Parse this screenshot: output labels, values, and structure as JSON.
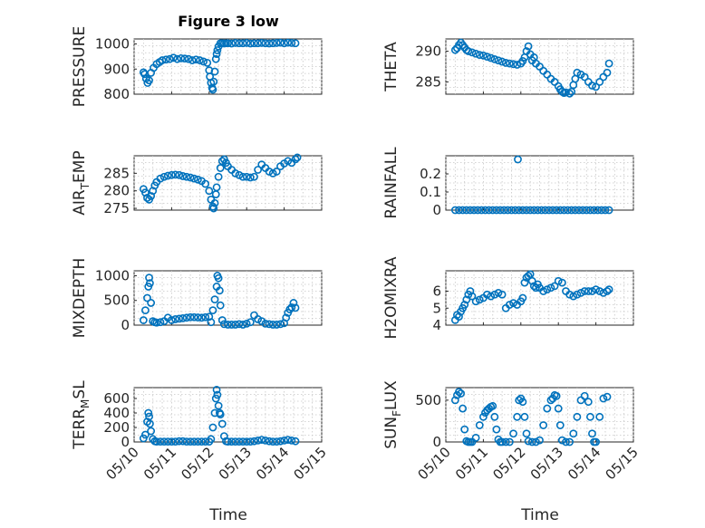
{
  "figure": {
    "title": "Figure 3 low",
    "xlabel": "Time",
    "x_tick_labels": [
      "05/10",
      "05/11",
      "05/12",
      "05/13",
      "05/14",
      "05/15"
    ],
    "marker_color": "#0072BD"
  },
  "chart_data": [
    {
      "type": "scatter",
      "ylabel": "PRESSURE",
      "ylabel_sub": "",
      "xlim": [
        0,
        5
      ],
      "ylim": [
        800,
        1020
      ],
      "yticks": [
        800,
        900,
        1000
      ],
      "show_xticklabels": false,
      "x": [
        0.25,
        0.28,
        0.32,
        0.36,
        0.4,
        0.45,
        0.52,
        0.6,
        0.68,
        0.75,
        0.85,
        0.95,
        1.05,
        1.15,
        1.25,
        1.35,
        1.45,
        1.55,
        1.65,
        1.75,
        1.85,
        1.95,
        2.0,
        2.02,
        2.05,
        2.08,
        2.1,
        2.12,
        2.15,
        2.18,
        2.2,
        2.22,
        2.25,
        2.3,
        2.35,
        2.4,
        2.45,
        2.5,
        2.6,
        2.7,
        2.8,
        2.9,
        3.0,
        3.1,
        3.2,
        3.3,
        3.4,
        3.5,
        3.6,
        3.7,
        3.8,
        3.9,
        4.0,
        4.1,
        4.2,
        4.3
      ],
      "y": [
        887,
        880,
        862,
        845,
        855,
        885,
        905,
        920,
        928,
        935,
        938,
        940,
        945,
        940,
        943,
        942,
        940,
        935,
        938,
        935,
        930,
        925,
        895,
        870,
        845,
        825,
        818,
        850,
        890,
        940,
        960,
        975,
        990,
        1003,
        1003,
        1002,
        1003,
        1003,
        1002,
        1004,
        1003,
        1003,
        1004,
        1002,
        1003,
        1003,
        1004,
        1003,
        1002,
        1003,
        1004,
        1005,
        1003,
        1005,
        1004,
        1003
      ]
    },
    {
      "type": "scatter",
      "ylabel": "THETA",
      "ylabel_sub": "",
      "xlim": [
        0,
        5
      ],
      "ylim": [
        283,
        292
      ],
      "yticks": [
        285,
        290
      ],
      "show_xticklabels": false,
      "x": [
        0.25,
        0.3,
        0.35,
        0.4,
        0.45,
        0.5,
        0.55,
        0.6,
        0.7,
        0.8,
        0.9,
        1.0,
        1.1,
        1.2,
        1.3,
        1.4,
        1.5,
        1.6,
        1.7,
        1.8,
        1.9,
        2.0,
        2.05,
        2.1,
        2.15,
        2.2,
        2.25,
        2.3,
        2.35,
        2.4,
        2.5,
        2.6,
        2.7,
        2.8,
        2.9,
        3.0,
        3.05,
        3.1,
        3.15,
        3.2,
        3.3,
        3.35,
        3.4,
        3.45,
        3.5,
        3.6,
        3.7,
        3.8,
        3.9,
        4.0,
        4.1,
        4.2,
        4.3,
        4.35
      ],
      "y": [
        290.2,
        290.5,
        291.0,
        291.4,
        291.0,
        290.6,
        290.2,
        290.0,
        289.8,
        289.6,
        289.4,
        289.3,
        289.1,
        288.9,
        288.7,
        288.5,
        288.3,
        288.1,
        288.0,
        287.9,
        287.8,
        288.0,
        288.4,
        289.0,
        290.0,
        290.8,
        289.5,
        288.5,
        289.0,
        288.0,
        287.5,
        286.8,
        286.2,
        285.5,
        285.0,
        284.3,
        283.8,
        283.4,
        283.2,
        283.3,
        283.1,
        283.4,
        284.5,
        285.5,
        286.5,
        286.2,
        285.8,
        285.0,
        284.4,
        284.2,
        285.0,
        285.8,
        286.5,
        288.0
      ]
    },
    {
      "type": "scatter",
      "ylabel": "AIR",
      "ylabel_sub": "T",
      "ylabel_rest": "EMP",
      "xlim": [
        0,
        5
      ],
      "ylim": [
        274.5,
        290
      ],
      "yticks": [
        275,
        280,
        285
      ],
      "show_xticklabels": false,
      "x": [
        0.25,
        0.3,
        0.35,
        0.4,
        0.45,
        0.5,
        0.55,
        0.6,
        0.7,
        0.8,
        0.9,
        1.0,
        1.1,
        1.2,
        1.3,
        1.4,
        1.5,
        1.6,
        1.7,
        1.8,
        1.9,
        2.0,
        2.05,
        2.1,
        2.12,
        2.15,
        2.18,
        2.2,
        2.25,
        2.3,
        2.35,
        2.4,
        2.45,
        2.5,
        2.6,
        2.7,
        2.8,
        2.9,
        3.0,
        3.1,
        3.2,
        3.3,
        3.4,
        3.5,
        3.6,
        3.7,
        3.8,
        3.9,
        4.0,
        4.1,
        4.2,
        4.3,
        4.35
      ],
      "y": [
        280.5,
        279.5,
        278.0,
        277.5,
        278.5,
        280.0,
        281.5,
        282.5,
        283.5,
        284.0,
        284.3,
        284.5,
        284.6,
        284.5,
        284.2,
        284.0,
        283.8,
        283.5,
        283.2,
        282.8,
        282.0,
        280.0,
        277.5,
        275.5,
        275.0,
        276.5,
        279.0,
        281.0,
        284.0,
        286.5,
        288.5,
        289.0,
        288.0,
        287.0,
        286.0,
        285.0,
        284.5,
        284.0,
        284.0,
        283.8,
        284.0,
        286.0,
        287.5,
        286.5,
        285.5,
        285.0,
        285.5,
        287.0,
        287.8,
        288.5,
        288.0,
        289.0,
        289.5
      ]
    },
    {
      "type": "scatter",
      "ylabel": "RAINFALL",
      "ylabel_sub": "",
      "xlim": [
        0,
        5
      ],
      "ylim": [
        0,
        0.3
      ],
      "yticks": [
        0,
        0.1,
        0.2
      ],
      "ytick_labels": [
        "0",
        "0.1",
        "0.2"
      ],
      "show_xticklabels": false,
      "x": [
        0.25,
        0.35,
        0.45,
        0.55,
        0.65,
        0.75,
        0.85,
        0.95,
        1.05,
        1.15,
        1.25,
        1.35,
        1.45,
        1.55,
        1.65,
        1.75,
        1.85,
        1.95,
        2.05,
        2.15,
        2.25,
        2.35,
        2.45,
        2.55,
        2.65,
        2.75,
        2.85,
        2.95,
        3.05,
        3.15,
        3.25,
        3.35,
        3.45,
        3.55,
        3.65,
        3.75,
        3.85,
        3.95,
        4.05,
        4.15,
        4.25,
        4.35,
        1.92
      ],
      "y": [
        0,
        0,
        0,
        0,
        0,
        0,
        0,
        0,
        0,
        0,
        0,
        0,
        0,
        0,
        0,
        0,
        0,
        0,
        0,
        0,
        0,
        0,
        0,
        0,
        0,
        0,
        0,
        0,
        0,
        0,
        0,
        0,
        0,
        0,
        0,
        0,
        0,
        0,
        0,
        0,
        0,
        0,
        0.28
      ]
    },
    {
      "type": "scatter",
      "ylabel": "MIXDEPTH",
      "ylabel_sub": "",
      "xlim": [
        0,
        5
      ],
      "ylim": [
        0,
        1100
      ],
      "yticks": [
        0,
        500,
        1000
      ],
      "show_xticklabels": false,
      "x": [
        0.25,
        0.3,
        0.35,
        0.38,
        0.4,
        0.42,
        0.45,
        0.5,
        0.55,
        0.6,
        0.7,
        0.8,
        0.9,
        1.0,
        1.1,
        1.2,
        1.3,
        1.4,
        1.5,
        1.6,
        1.7,
        1.8,
        1.9,
        2.0,
        2.05,
        2.1,
        2.15,
        2.2,
        2.22,
        2.25,
        2.28,
        2.3,
        2.35,
        2.4,
        2.5,
        2.6,
        2.7,
        2.8,
        2.9,
        3.0,
        3.1,
        3.2,
        3.3,
        3.4,
        3.5,
        3.6,
        3.7,
        3.8,
        3.9,
        4.0,
        4.05,
        4.1,
        4.15,
        4.2,
        4.25,
        4.3
      ],
      "y": [
        100,
        300,
        550,
        780,
        960,
        850,
        450,
        80,
        60,
        50,
        60,
        80,
        150,
        100,
        120,
        130,
        140,
        150,
        160,
        160,
        155,
        150,
        160,
        170,
        60,
        300,
        520,
        780,
        1000,
        950,
        700,
        400,
        100,
        20,
        10,
        10,
        10,
        20,
        10,
        30,
        60,
        200,
        120,
        80,
        30,
        20,
        10,
        10,
        20,
        40,
        150,
        250,
        320,
        360,
        450,
        350
      ]
    },
    {
      "type": "scatter",
      "ylabel": "H2OMIXRA",
      "ylabel_sub": "",
      "xlim": [
        0,
        5
      ],
      "ylim": [
        4,
        7.2
      ],
      "yticks": [
        4,
        5,
        6
      ],
      "show_xticklabels": false,
      "x": [
        0.25,
        0.3,
        0.35,
        0.4,
        0.45,
        0.5,
        0.55,
        0.6,
        0.65,
        0.7,
        0.8,
        0.9,
        1.0,
        1.1,
        1.2,
        1.3,
        1.4,
        1.5,
        1.6,
        1.7,
        1.8,
        1.9,
        2.0,
        2.05,
        2.1,
        2.15,
        2.2,
        2.25,
        2.3,
        2.35,
        2.4,
        2.45,
        2.5,
        2.6,
        2.7,
        2.8,
        2.9,
        3.0,
        3.1,
        3.2,
        3.3,
        3.4,
        3.5,
        3.6,
        3.7,
        3.8,
        3.9,
        4.0,
        4.1,
        4.2,
        4.3,
        4.35
      ],
      "y": [
        4.3,
        4.6,
        4.5,
        4.8,
        5.0,
        5.2,
        5.5,
        5.8,
        6.0,
        5.7,
        5.4,
        5.5,
        5.6,
        5.8,
        5.7,
        5.8,
        5.9,
        5.8,
        5.0,
        5.2,
        5.3,
        5.2,
        5.4,
        5.6,
        6.5,
        6.8,
        6.9,
        7.0,
        6.6,
        6.3,
        6.2,
        6.4,
        6.2,
        6.0,
        6.1,
        6.2,
        6.3,
        6.6,
        6.5,
        6.0,
        5.8,
        5.7,
        5.8,
        5.9,
        6.0,
        6.0,
        6.0,
        6.1,
        6.0,
        5.9,
        6.0,
        6.1
      ]
    },
    {
      "type": "scatter",
      "ylabel": "TERR",
      "ylabel_sub": "M",
      "ylabel_rest": "SL",
      "xlim": [
        0,
        5
      ],
      "ylim": [
        0,
        750
      ],
      "yticks": [
        0,
        200,
        400,
        600
      ],
      "show_xticklabels": true,
      "x": [
        0.25,
        0.3,
        0.35,
        0.38,
        0.4,
        0.42,
        0.45,
        0.5,
        0.55,
        0.6,
        0.7,
        0.8,
        0.9,
        1.0,
        1.1,
        1.2,
        1.3,
        1.4,
        1.5,
        1.6,
        1.7,
        1.8,
        1.9,
        2.0,
        2.05,
        2.1,
        2.15,
        2.18,
        2.2,
        2.22,
        2.25,
        2.28,
        2.3,
        2.35,
        2.4,
        2.45,
        2.5,
        2.6,
        2.7,
        2.8,
        2.9,
        3.0,
        3.1,
        3.2,
        3.3,
        3.4,
        3.5,
        3.6,
        3.7,
        3.8,
        3.9,
        4.0,
        4.1,
        4.2,
        4.3
      ],
      "y": [
        50,
        100,
        280,
        400,
        350,
        250,
        150,
        40,
        10,
        5,
        5,
        5,
        5,
        5,
        5,
        10,
        10,
        5,
        5,
        5,
        5,
        5,
        5,
        5,
        40,
        200,
        400,
        600,
        720,
        650,
        500,
        400,
        380,
        250,
        80,
        10,
        5,
        5,
        5,
        5,
        5,
        5,
        5,
        10,
        20,
        30,
        20,
        10,
        5,
        5,
        10,
        20,
        30,
        20,
        10
      ]
    },
    {
      "type": "scatter",
      "ylabel": "SUN",
      "ylabel_sub": "F",
      "ylabel_rest": "LUX",
      "xlim": [
        0,
        5
      ],
      "ylim": [
        0,
        650
      ],
      "yticks": [
        0,
        500
      ],
      "show_xticklabels": true,
      "x": [
        0.25,
        0.3,
        0.35,
        0.4,
        0.45,
        0.5,
        0.55,
        0.6,
        0.65,
        0.7,
        0.8,
        0.9,
        1.0,
        1.05,
        1.1,
        1.15,
        1.2,
        1.25,
        1.3,
        1.35,
        1.4,
        1.45,
        1.5,
        1.6,
        1.7,
        1.8,
        1.9,
        1.95,
        2.0,
        2.05,
        2.1,
        2.15,
        2.2,
        2.3,
        2.4,
        2.5,
        2.6,
        2.7,
        2.8,
        2.85,
        2.9,
        2.95,
        3.0,
        3.05,
        3.1,
        3.2,
        3.3,
        3.4,
        3.5,
        3.6,
        3.7,
        3.8,
        3.85,
        3.9,
        3.95,
        4.0,
        4.1,
        4.2,
        4.3
      ],
      "y": [
        500,
        560,
        600,
        580,
        400,
        150,
        10,
        0,
        0,
        0,
        50,
        200,
        300,
        350,
        380,
        400,
        420,
        430,
        300,
        150,
        30,
        0,
        0,
        0,
        0,
        100,
        300,
        500,
        520,
        480,
        300,
        100,
        10,
        0,
        0,
        20,
        200,
        400,
        500,
        520,
        560,
        550,
        400,
        200,
        20,
        0,
        0,
        100,
        300,
        500,
        550,
        480,
        300,
        100,
        0,
        0,
        300,
        520,
        540
      ]
    }
  ]
}
